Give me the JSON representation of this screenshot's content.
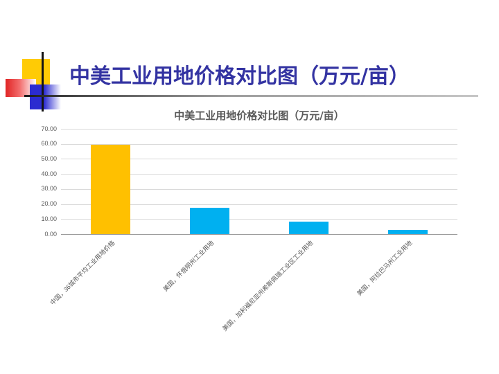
{
  "slide": {
    "title": "中美工业用地价格对比图（万元/亩）",
    "title_color": "#3333A2",
    "decoration": {
      "yellow_square": "#FFCB05",
      "red_square": "#E02525",
      "blue_square": "#2B2BD0",
      "line_color": "#141414"
    }
  },
  "chart_data": {
    "type": "bar",
    "title": "中美工业用地价格对比图（万元/亩）",
    "categories": [
      "中国，36城市平均工业用地价格",
      "美国，怀俄明州工业用地",
      "美国，加利福尼亚州希斯佩瑞工业区工业用地",
      "美国，阿拉巴马州工业用地"
    ],
    "values": [
      59.5,
      17.5,
      8.3,
      3.0
    ],
    "bar_colors": [
      "#FFC000",
      "#00B0F0",
      "#00B0F0",
      "#00B0F0"
    ],
    "xlabel": "",
    "ylabel": "",
    "ylim": [
      0,
      70
    ],
    "ytick_step": 10,
    "ytick_labels": [
      "0.00",
      "10.00",
      "20.00",
      "30.00",
      "40.00",
      "50.00",
      "60.00",
      "70.00"
    ],
    "grid": true,
    "gridline_color": "#D9D9D9",
    "axis_line_color": "#9B9B9B",
    "text_color": "#595959",
    "legend_position": "none"
  }
}
